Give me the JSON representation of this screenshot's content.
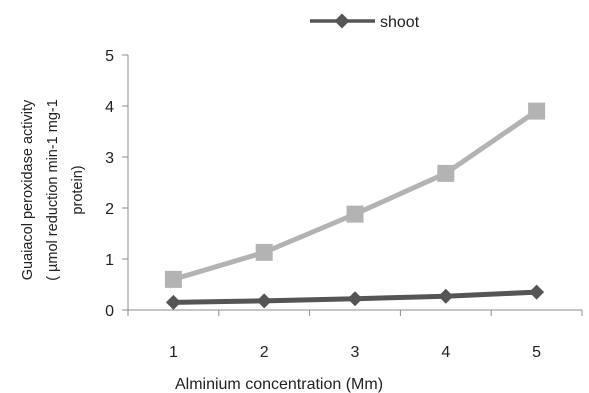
{
  "chart_data": {
    "type": "line",
    "title": "",
    "xlabel": "Alminium concentration (Mm)",
    "ylabel_lines": [
      "Guaiacol peroxidase activity",
      "( µmol reduction min-1 mg-1",
      "protein)"
    ],
    "categories": [
      "1",
      "2",
      "3",
      "4",
      "5"
    ],
    "ylim": [
      0,
      5
    ],
    "yticks": [
      "0",
      "1",
      "2",
      "3",
      "4",
      "5"
    ],
    "grid": false,
    "legend_position": "top",
    "series": [
      {
        "name": "shoot",
        "values": [
          0.15,
          0.18,
          0.22,
          0.27,
          0.35
        ],
        "color": "#555555",
        "marker": "diamond",
        "in_legend": true
      },
      {
        "name": "",
        "values": [
          0.6,
          1.13,
          1.88,
          2.68,
          3.9
        ],
        "color": "#b3b3b3",
        "marker": "square",
        "in_legend": false
      }
    ]
  }
}
